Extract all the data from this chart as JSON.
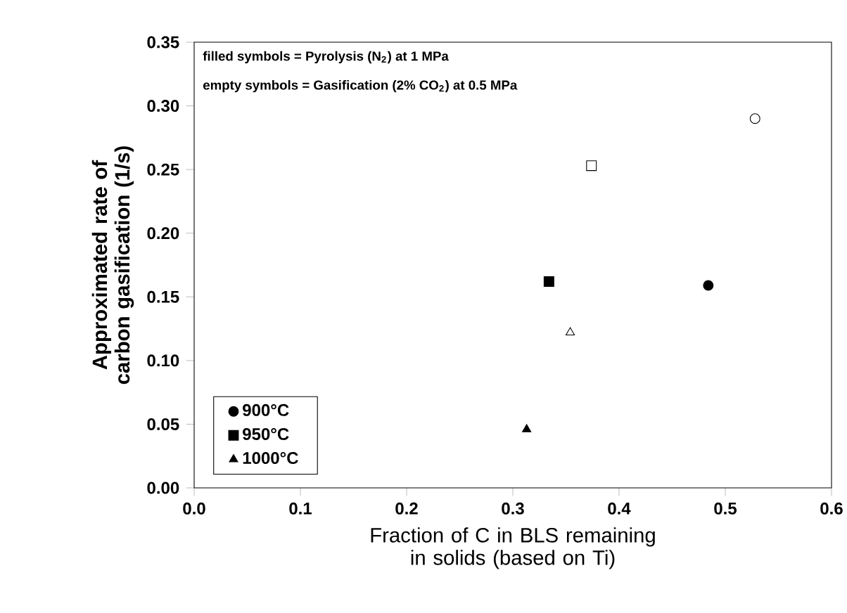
{
  "chart_data": {
    "type": "scatter",
    "xlabel": "Fraction of C in BLS remaining in solids (based on Ti)",
    "ylabel": "Approximated rate of carbon gasification (1/s)",
    "annotations": [
      "filled symbols = Pyrolysis (N$_{2}$) at 1 MPa",
      "empty symbols = Gasification (2% CO$_{2}$) at 0.5 MPa"
    ],
    "xlim": [
      0,
      0.6
    ],
    "ylim": [
      0,
      0.35
    ],
    "xticks": [
      {
        "value": 0,
        "label": "0.0"
      },
      0.1,
      0.2,
      0.3,
      0.4,
      0.5,
      0.6
    ],
    "yticks": [
      {
        "value": 0,
        "label": "0.00"
      },
      0.05,
      {
        "value": 0.1,
        "label": "0.10"
      },
      0.15,
      {
        "value": 0.2,
        "label": "0.20"
      },
      0.25,
      {
        "value": 0.3,
        "label": "0.30"
      },
      0.35
    ],
    "legend": "bottom left",
    "grid": false,
    "series": [
      {
        "name": "900°C",
        "color": "#000000",
        "marker": "circle",
        "x": [
          0.484
        ],
        "values": [
          0.159
        ]
      },
      {
        "name": "950°C",
        "color": "#000000",
        "marker": "square",
        "x": [
          0.334
        ],
        "values": [
          0.162
        ]
      },
      {
        "name": "1000°C",
        "color": "#000000",
        "marker": "triangle",
        "x": [
          0.313
        ],
        "values": [
          0.046
        ]
      },
      {
        "color": "#ffffff",
        "marker": "circle",
        "x": [
          0.528
        ],
        "values": [
          0.29
        ]
      },
      {
        "color": "#ffffff",
        "marker": "square",
        "x": [
          0.374
        ],
        "values": [
          0.253
        ]
      },
      {
        "color": "#ffffff",
        "marker": "triangle",
        "x": [
          0.354
        ],
        "values": [
          0.122
        ]
      }
    ]
  }
}
